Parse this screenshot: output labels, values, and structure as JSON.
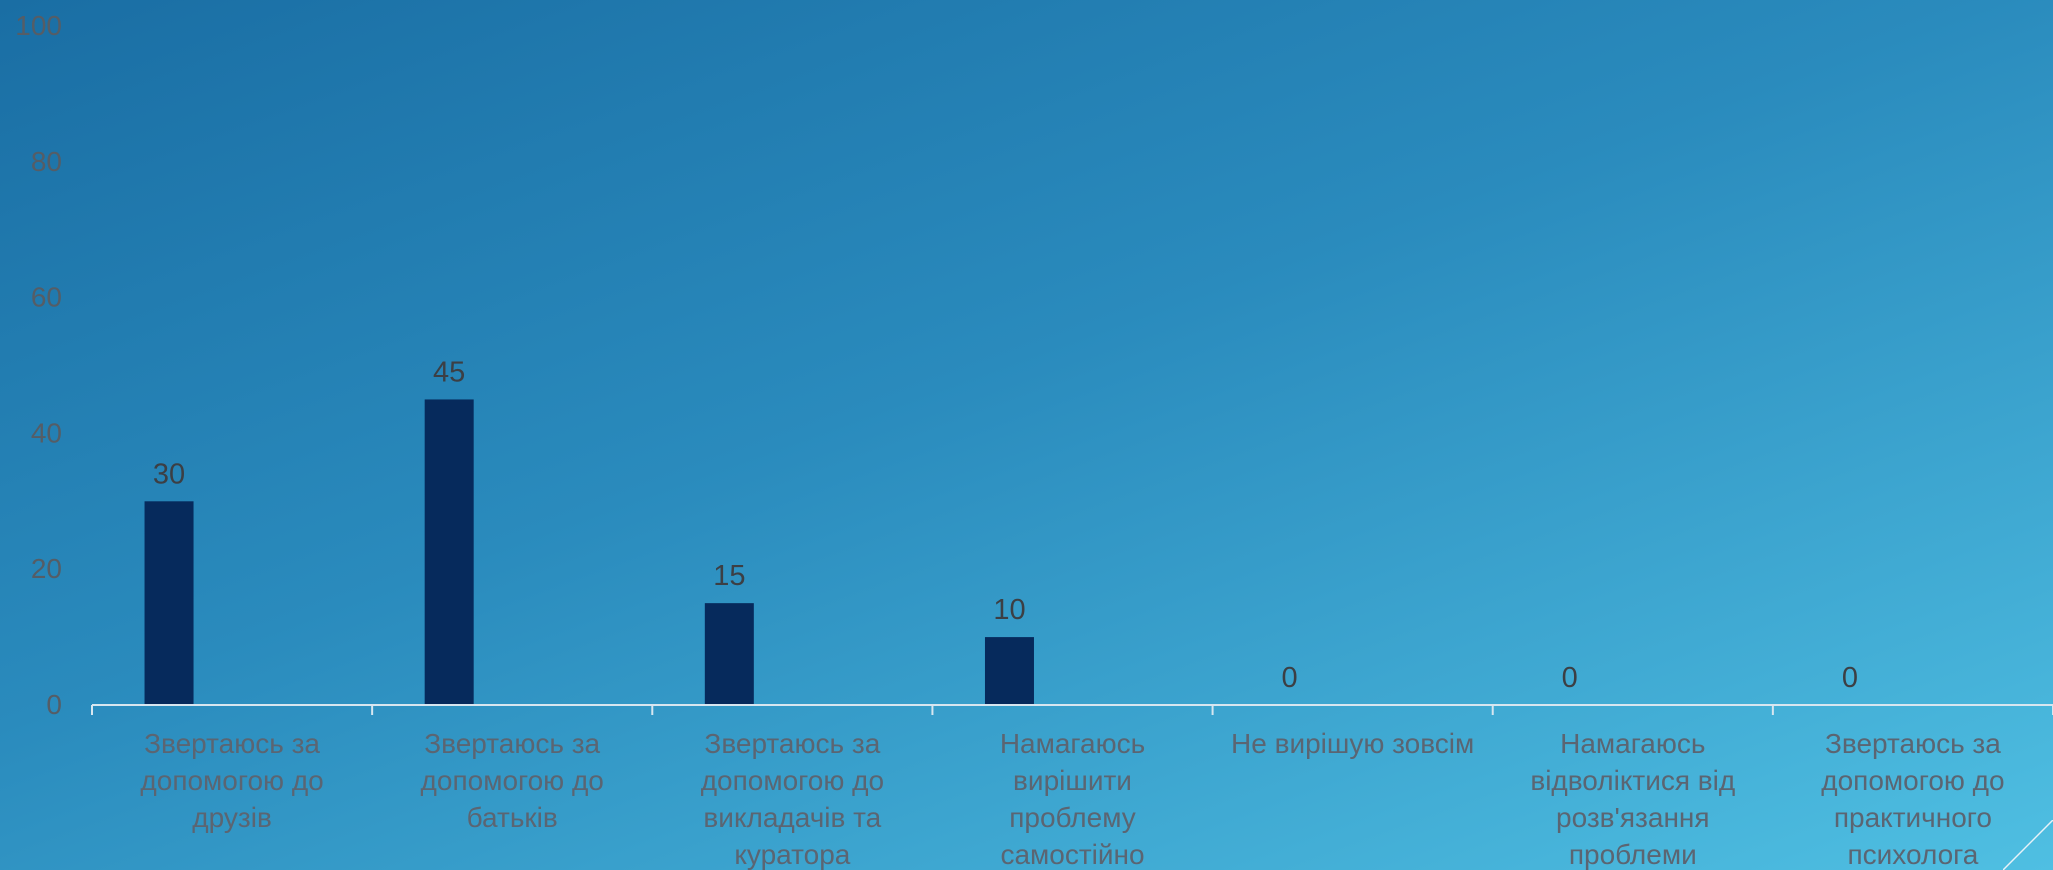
{
  "chart_data": {
    "type": "bar",
    "title": "",
    "xlabel": "",
    "ylabel": "",
    "ylim": [
      0,
      100
    ],
    "yticks": [
      "0",
      "20",
      "40",
      "60",
      "80",
      "100"
    ],
    "categories": [
      [
        "Звертаюсь за",
        "допомогою до",
        "друзів"
      ],
      [
        "Звертаюсь за",
        "допомогою до",
        "батьків"
      ],
      [
        "Звертаюсь за",
        "допомогою до",
        "викладачів та",
        "куратора"
      ],
      [
        "Намагаюсь",
        "вирішити",
        "проблему",
        "самостійно"
      ],
      [
        "Не вирішую зовсім"
      ],
      [
        "Намагаюсь",
        "відволіктися від",
        "розв'язання",
        "проблеми"
      ],
      [
        "Звертаюсь за",
        "допомогою до",
        "практичного",
        "психолога"
      ]
    ],
    "values": [
      30,
      45,
      15,
      10,
      0,
      0,
      0
    ],
    "data_labels": [
      "30",
      "45",
      "15",
      "10",
      "0",
      "0",
      "0"
    ],
    "grid": false,
    "legend": "none"
  },
  "colors": {
    "bar": "#062a5c",
    "axis": "#d7e6f0",
    "tick_text": "#555d66",
    "value_text": "#3c3f44",
    "category_text": "#5b6572"
  }
}
